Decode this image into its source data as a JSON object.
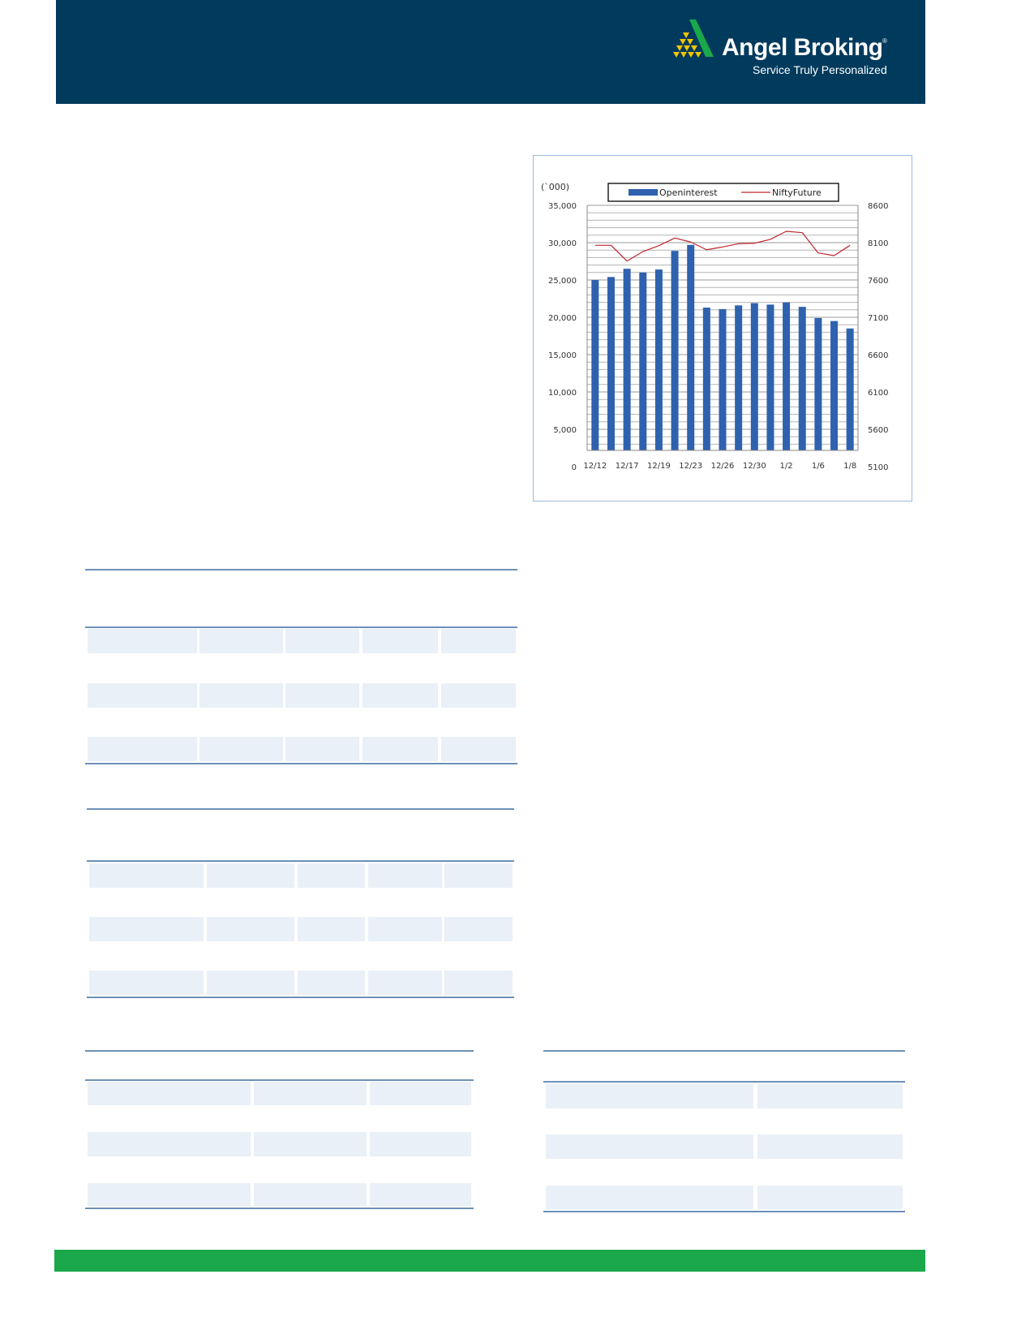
{
  "header": {
    "brand": "Angel Broking",
    "registered_mark": "®",
    "tagline": "Service Truly Personalized",
    "colors": {
      "background": "#003a5d",
      "logo_green": "#1aa84a",
      "logo_yellow": "#f2c500"
    }
  },
  "footer": {
    "color": "#1aa84a"
  },
  "chart_data": {
    "type": "bar",
    "unit_label": "(`000)",
    "x_tick_labels": [
      "12/12",
      "12/17",
      "12/19",
      "12/23",
      "12/26",
      "12/30",
      "1/2",
      "1/6",
      "1/8"
    ],
    "series": [
      {
        "name": "Openinterest",
        "type": "bar",
        "axis": "left",
        "color": "#2e62ae",
        "values": [
          25000,
          25400,
          26500,
          26000,
          26400,
          28900,
          29700,
          21300,
          21100,
          21600,
          21900,
          21700,
          22000,
          21400,
          19900,
          19500,
          18500
        ]
      },
      {
        "name": "NiftyFuture",
        "type": "line",
        "axis": "right",
        "color": "#c0262d",
        "values": [
          8064,
          8064,
          7853,
          7980,
          8060,
          8162,
          8108,
          8005,
          8042,
          8086,
          8092,
          8144,
          8252,
          8234,
          7962,
          7926,
          8064
        ]
      }
    ],
    "y_left": {
      "ylim": [
        0,
        35000
      ],
      "ticks": [
        "0",
        "5,000",
        "10,000",
        "15,000",
        "20,000",
        "25,000",
        "30,000",
        "35,000"
      ]
    },
    "y_right": {
      "ylim": [
        5100,
        8600
      ],
      "ticks": [
        "5100",
        "5600",
        "6100",
        "6600",
        "7100",
        "7600",
        "8100",
        "8600"
      ]
    },
    "grid": true,
    "legend_placement": "top"
  }
}
